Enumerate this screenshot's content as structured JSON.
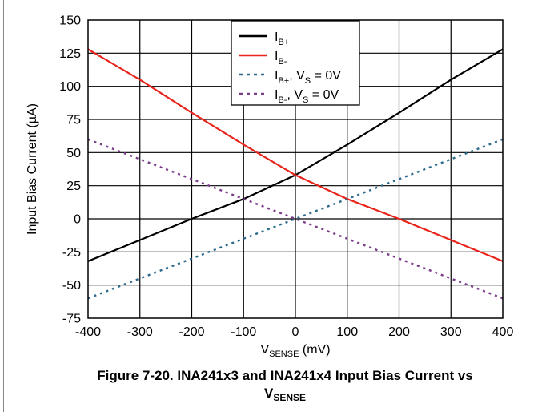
{
  "chart_data": {
    "type": "line",
    "xlabel": {
      "main": "V",
      "sub": "SENSE",
      "rest": " (mV)"
    },
    "ylabel": "Input Bias Current (µA)",
    "xlim": [
      -400,
      400
    ],
    "ylim": [
      -75,
      150
    ],
    "xticks": [
      -400,
      -300,
      -200,
      -100,
      0,
      100,
      200,
      300,
      400
    ],
    "yticks": [
      -75,
      -50,
      -25,
      0,
      25,
      50,
      75,
      100,
      125,
      150
    ],
    "grid": true,
    "legend_position": "top-right",
    "series": [
      {
        "legend": {
          "main": "I",
          "sub": "B+",
          "rest": "",
          "vs": "",
          "vsSub": "",
          "vsRest": ""
        },
        "color": "#000000",
        "style": "solid",
        "x": [
          -400,
          -300,
          -200,
          -100,
          0,
          100,
          200,
          300,
          400
        ],
        "y": [
          -32,
          -16,
          0,
          15,
          33,
          56,
          80,
          105,
          128
        ]
      },
      {
        "legend": {
          "main": "I",
          "sub": "B-",
          "rest": "",
          "vs": "",
          "vsSub": "",
          "vsRest": ""
        },
        "color": "#e8241c",
        "style": "solid",
        "x": [
          -400,
          -300,
          -200,
          -100,
          0,
          100,
          200,
          300,
          400
        ],
        "y": [
          128,
          105,
          80,
          56,
          33,
          15,
          0,
          -16,
          -32
        ]
      },
      {
        "legend": {
          "main": "I",
          "sub": "B+",
          "rest": ", ",
          "vs": "V",
          "vsSub": "S",
          "vsRest": " = 0V"
        },
        "color": "#2d6a8c",
        "style": "dotted",
        "x": [
          -400,
          -200,
          0,
          200,
          400
        ],
        "y": [
          -60,
          -30,
          0,
          30,
          60
        ]
      },
      {
        "legend": {
          "main": "I",
          "sub": "B-",
          "rest": ", ",
          "vs": "V",
          "vsSub": "S",
          "vsRest": " = 0V"
        },
        "color": "#7b3d8a",
        "style": "dotted",
        "x": [
          -400,
          -200,
          0,
          200,
          400
        ],
        "y": [
          60,
          30,
          0,
          -30,
          -60
        ]
      }
    ]
  },
  "caption": {
    "line1": "Figure 7-20. INA241x3 and INA241x4 Input Bias Current vs",
    "line2_main": "V",
    "line2_sub": "SENSE"
  }
}
